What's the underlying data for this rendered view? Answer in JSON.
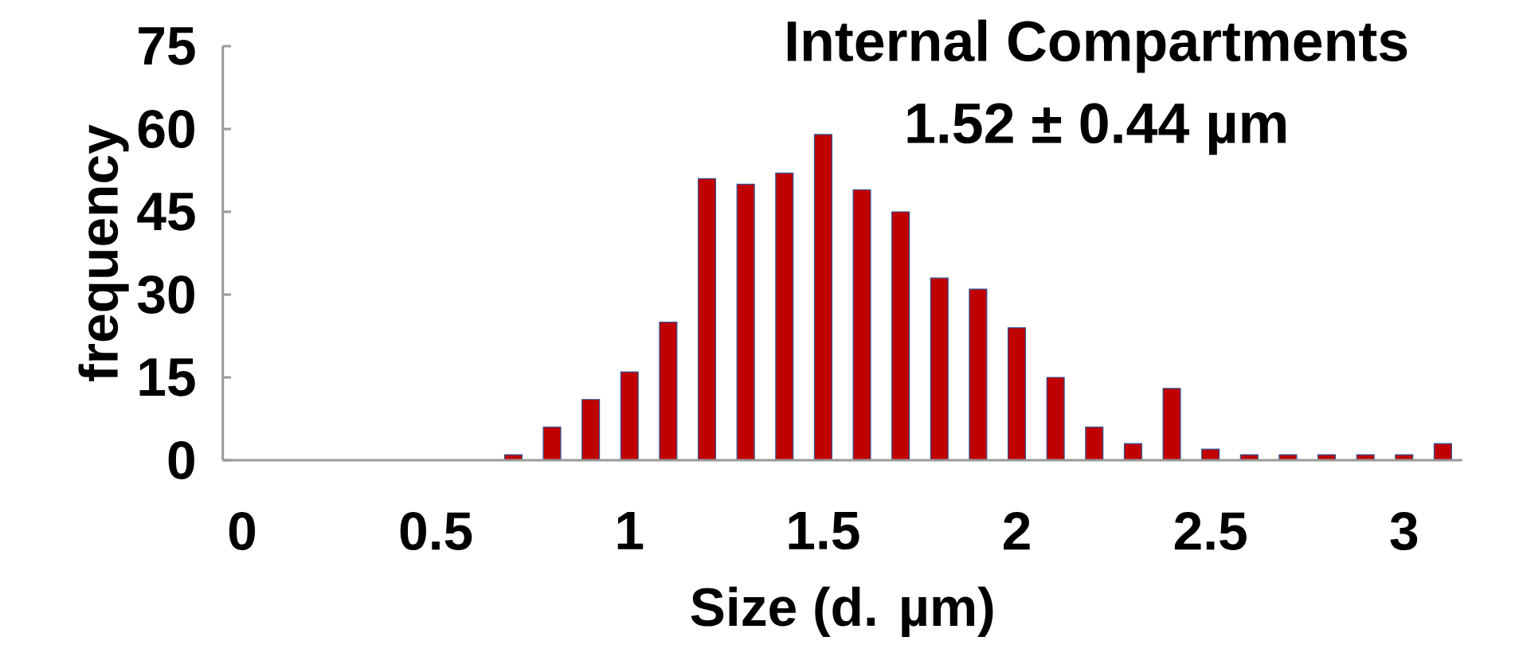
{
  "chart_data": {
    "type": "bar",
    "title": "Internal Compartments",
    "subtitle": "1.52 ± 0.44 µm",
    "xlabel": "Size (d. µm)",
    "ylabel": "frequency",
    "x": [
      0.7,
      0.8,
      0.9,
      1.0,
      1.1,
      1.2,
      1.3,
      1.4,
      1.5,
      1.6,
      1.7,
      1.8,
      1.9,
      2.0,
      2.1,
      2.2,
      2.3,
      2.4,
      2.5,
      2.6,
      2.7,
      2.8,
      2.9,
      3.0,
      3.1
    ],
    "values": [
      1,
      6,
      11,
      16,
      25,
      51,
      50,
      52,
      59,
      49,
      45,
      33,
      31,
      24,
      15,
      6,
      3,
      13,
      2,
      1,
      1,
      1,
      1,
      1,
      3
    ],
    "color": "#c00000",
    "xlim": [
      -0.05,
      3.15
    ],
    "xticks": [
      0,
      0.5,
      1,
      1.5,
      2,
      2.5,
      3
    ],
    "ylim": [
      0,
      75
    ],
    "yticks": [
      0,
      15,
      30,
      45,
      60,
      75
    ]
  }
}
